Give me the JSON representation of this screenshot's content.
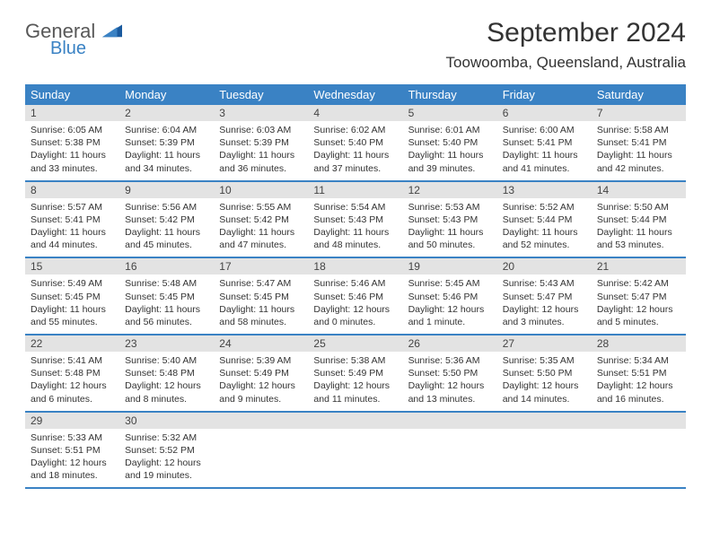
{
  "logo": {
    "text1": "General",
    "text2": "Blue"
  },
  "title": "September 2024",
  "location": "Toowoomba, Queensland, Australia",
  "colors": {
    "header_bg": "#3a82c4",
    "header_text": "#ffffff",
    "daynum_bg": "#e3e3e3",
    "row_divider": "#3a82c4",
    "body_text": "#333333",
    "logo_gray": "#585858",
    "logo_blue": "#3a82c4"
  },
  "typography": {
    "title_fontsize": 30,
    "location_fontsize": 17,
    "dow_fontsize": 13,
    "daynum_fontsize": 12,
    "body_fontsize": 10.5
  },
  "days_of_week": [
    "Sunday",
    "Monday",
    "Tuesday",
    "Wednesday",
    "Thursday",
    "Friday",
    "Saturday"
  ],
  "weeks": [
    [
      {
        "n": "1",
        "sunrise": "Sunrise: 6:05 AM",
        "sunset": "Sunset: 5:38 PM",
        "day1": "Daylight: 11 hours",
        "day2": "and 33 minutes."
      },
      {
        "n": "2",
        "sunrise": "Sunrise: 6:04 AM",
        "sunset": "Sunset: 5:39 PM",
        "day1": "Daylight: 11 hours",
        "day2": "and 34 minutes."
      },
      {
        "n": "3",
        "sunrise": "Sunrise: 6:03 AM",
        "sunset": "Sunset: 5:39 PM",
        "day1": "Daylight: 11 hours",
        "day2": "and 36 minutes."
      },
      {
        "n": "4",
        "sunrise": "Sunrise: 6:02 AM",
        "sunset": "Sunset: 5:40 PM",
        "day1": "Daylight: 11 hours",
        "day2": "and 37 minutes."
      },
      {
        "n": "5",
        "sunrise": "Sunrise: 6:01 AM",
        "sunset": "Sunset: 5:40 PM",
        "day1": "Daylight: 11 hours",
        "day2": "and 39 minutes."
      },
      {
        "n": "6",
        "sunrise": "Sunrise: 6:00 AM",
        "sunset": "Sunset: 5:41 PM",
        "day1": "Daylight: 11 hours",
        "day2": "and 41 minutes."
      },
      {
        "n": "7",
        "sunrise": "Sunrise: 5:58 AM",
        "sunset": "Sunset: 5:41 PM",
        "day1": "Daylight: 11 hours",
        "day2": "and 42 minutes."
      }
    ],
    [
      {
        "n": "8",
        "sunrise": "Sunrise: 5:57 AM",
        "sunset": "Sunset: 5:41 PM",
        "day1": "Daylight: 11 hours",
        "day2": "and 44 minutes."
      },
      {
        "n": "9",
        "sunrise": "Sunrise: 5:56 AM",
        "sunset": "Sunset: 5:42 PM",
        "day1": "Daylight: 11 hours",
        "day2": "and 45 minutes."
      },
      {
        "n": "10",
        "sunrise": "Sunrise: 5:55 AM",
        "sunset": "Sunset: 5:42 PM",
        "day1": "Daylight: 11 hours",
        "day2": "and 47 minutes."
      },
      {
        "n": "11",
        "sunrise": "Sunrise: 5:54 AM",
        "sunset": "Sunset: 5:43 PM",
        "day1": "Daylight: 11 hours",
        "day2": "and 48 minutes."
      },
      {
        "n": "12",
        "sunrise": "Sunrise: 5:53 AM",
        "sunset": "Sunset: 5:43 PM",
        "day1": "Daylight: 11 hours",
        "day2": "and 50 minutes."
      },
      {
        "n": "13",
        "sunrise": "Sunrise: 5:52 AM",
        "sunset": "Sunset: 5:44 PM",
        "day1": "Daylight: 11 hours",
        "day2": "and 52 minutes."
      },
      {
        "n": "14",
        "sunrise": "Sunrise: 5:50 AM",
        "sunset": "Sunset: 5:44 PM",
        "day1": "Daylight: 11 hours",
        "day2": "and 53 minutes."
      }
    ],
    [
      {
        "n": "15",
        "sunrise": "Sunrise: 5:49 AM",
        "sunset": "Sunset: 5:45 PM",
        "day1": "Daylight: 11 hours",
        "day2": "and 55 minutes."
      },
      {
        "n": "16",
        "sunrise": "Sunrise: 5:48 AM",
        "sunset": "Sunset: 5:45 PM",
        "day1": "Daylight: 11 hours",
        "day2": "and 56 minutes."
      },
      {
        "n": "17",
        "sunrise": "Sunrise: 5:47 AM",
        "sunset": "Sunset: 5:45 PM",
        "day1": "Daylight: 11 hours",
        "day2": "and 58 minutes."
      },
      {
        "n": "18",
        "sunrise": "Sunrise: 5:46 AM",
        "sunset": "Sunset: 5:46 PM",
        "day1": "Daylight: 12 hours",
        "day2": "and 0 minutes."
      },
      {
        "n": "19",
        "sunrise": "Sunrise: 5:45 AM",
        "sunset": "Sunset: 5:46 PM",
        "day1": "Daylight: 12 hours",
        "day2": "and 1 minute."
      },
      {
        "n": "20",
        "sunrise": "Sunrise: 5:43 AM",
        "sunset": "Sunset: 5:47 PM",
        "day1": "Daylight: 12 hours",
        "day2": "and 3 minutes."
      },
      {
        "n": "21",
        "sunrise": "Sunrise: 5:42 AM",
        "sunset": "Sunset: 5:47 PM",
        "day1": "Daylight: 12 hours",
        "day2": "and 5 minutes."
      }
    ],
    [
      {
        "n": "22",
        "sunrise": "Sunrise: 5:41 AM",
        "sunset": "Sunset: 5:48 PM",
        "day1": "Daylight: 12 hours",
        "day2": "and 6 minutes."
      },
      {
        "n": "23",
        "sunrise": "Sunrise: 5:40 AM",
        "sunset": "Sunset: 5:48 PM",
        "day1": "Daylight: 12 hours",
        "day2": "and 8 minutes."
      },
      {
        "n": "24",
        "sunrise": "Sunrise: 5:39 AM",
        "sunset": "Sunset: 5:49 PM",
        "day1": "Daylight: 12 hours",
        "day2": "and 9 minutes."
      },
      {
        "n": "25",
        "sunrise": "Sunrise: 5:38 AM",
        "sunset": "Sunset: 5:49 PM",
        "day1": "Daylight: 12 hours",
        "day2": "and 11 minutes."
      },
      {
        "n": "26",
        "sunrise": "Sunrise: 5:36 AM",
        "sunset": "Sunset: 5:50 PM",
        "day1": "Daylight: 12 hours",
        "day2": "and 13 minutes."
      },
      {
        "n": "27",
        "sunrise": "Sunrise: 5:35 AM",
        "sunset": "Sunset: 5:50 PM",
        "day1": "Daylight: 12 hours",
        "day2": "and 14 minutes."
      },
      {
        "n": "28",
        "sunrise": "Sunrise: 5:34 AM",
        "sunset": "Sunset: 5:51 PM",
        "day1": "Daylight: 12 hours",
        "day2": "and 16 minutes."
      }
    ],
    [
      {
        "n": "29",
        "sunrise": "Sunrise: 5:33 AM",
        "sunset": "Sunset: 5:51 PM",
        "day1": "Daylight: 12 hours",
        "day2": "and 18 minutes."
      },
      {
        "n": "30",
        "sunrise": "Sunrise: 5:32 AM",
        "sunset": "Sunset: 5:52 PM",
        "day1": "Daylight: 12 hours",
        "day2": "and 19 minutes."
      },
      {
        "empty": true
      },
      {
        "empty": true
      },
      {
        "empty": true
      },
      {
        "empty": true
      },
      {
        "empty": true
      }
    ]
  ]
}
